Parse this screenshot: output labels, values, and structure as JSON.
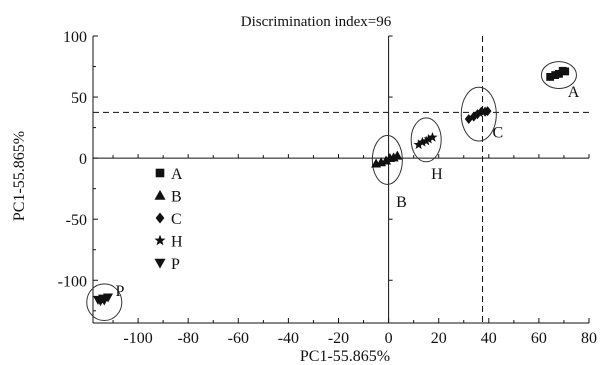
{
  "chart_data": {
    "type": "scatter",
    "title": "Discrimination  index=96",
    "xlabel": "PC1-55.865%",
    "ylabel": "PC1-55.865%",
    "xlim": [
      -118,
      80
    ],
    "ylim": [
      -135,
      100
    ],
    "xticks": [
      -100,
      -80,
      -60,
      -40,
      -20,
      0,
      20,
      40,
      60,
      80
    ],
    "yticks": [
      -100,
      -50,
      0,
      50,
      100
    ],
    "x_tick_labels": [
      "-100",
      "-80",
      "-60",
      "-40",
      "-20",
      "0",
      "20",
      "40",
      "60",
      "80"
    ],
    "y_tick_labels": [
      "-100",
      "-50",
      "0",
      "50",
      "100"
    ],
    "grid": false,
    "legend": "left",
    "reference_lines": {
      "x": 37.5,
      "y": 37.5
    },
    "series": [
      {
        "name": "A",
        "marker": "square",
        "color": "#111111",
        "points": [
          [
            64.5,
            66.5
          ],
          [
            66.5,
            68
          ],
          [
            68,
            69
          ],
          [
            69.5,
            71.5
          ],
          [
            70.5,
            71
          ]
        ],
        "ellipse": {
          "cx": 68,
          "cy": 68,
          "rx": 7,
          "ry": 11
        }
      },
      {
        "name": "B",
        "marker": "triangle-up",
        "color": "#111111",
        "points": [
          [
            -5,
            -4.5
          ],
          [
            -3,
            -3.5
          ],
          [
            -1,
            -2
          ],
          [
            0.5,
            0
          ],
          [
            2,
            0.5
          ],
          [
            3.5,
            2
          ]
        ],
        "ellipse": {
          "cx": -0.5,
          "cy": -1.5,
          "rx": 6,
          "ry": 20
        }
      },
      {
        "name": "C",
        "marker": "diamond",
        "color": "#111111",
        "points": [
          [
            32,
            32
          ],
          [
            34,
            34
          ],
          [
            35.5,
            36
          ],
          [
            37,
            38
          ],
          [
            38.5,
            38
          ],
          [
            39.5,
            38.5
          ]
        ],
        "ellipse": {
          "cx": 36,
          "cy": 36,
          "rx": 7,
          "ry": 22
        }
      },
      {
        "name": "H",
        "marker": "star",
        "color": "#111111",
        "points": [
          [
            12,
            11
          ],
          [
            13.5,
            13
          ],
          [
            15,
            14
          ],
          [
            16,
            15.5
          ],
          [
            17.5,
            17
          ]
        ],
        "ellipse": {
          "cx": 15,
          "cy": 15,
          "rx": 6,
          "ry": 18
        }
      },
      {
        "name": "P",
        "marker": "triangle-down",
        "color": "#111111",
        "points": [
          [
            -116,
            -116
          ],
          [
            -115,
            -117
          ],
          [
            -114,
            -115
          ],
          [
            -113.5,
            -116.5
          ],
          [
            -112,
            -114
          ]
        ],
        "ellipse": {
          "cx": -113.5,
          "cy": -118,
          "rx": 7,
          "ry": 15
        }
      }
    ],
    "cluster_labels": [
      {
        "text": "A",
        "x": 71.5,
        "y": 50
      },
      {
        "text": "B",
        "x": 3,
        "y": -40
      },
      {
        "text": "C",
        "x": 41.5,
        "y": 17
      },
      {
        "text": "H",
        "x": 17,
        "y": -17
      },
      {
        "text": "P",
        "x": -109,
        "y": -113
      }
    ]
  }
}
